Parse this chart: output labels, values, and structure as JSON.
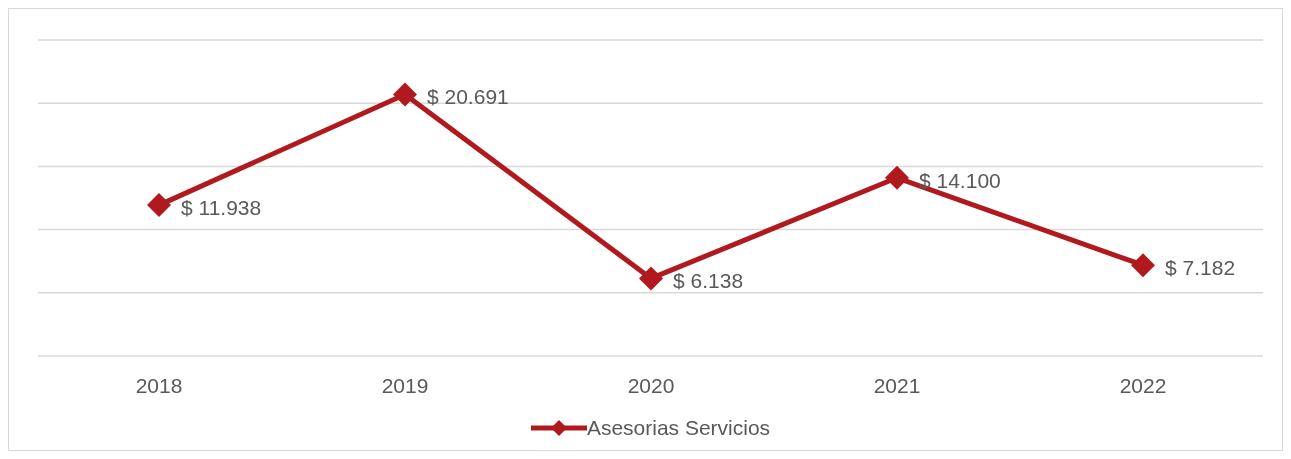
{
  "chart_data": {
    "type": "line",
    "categories": [
      "2018",
      "2019",
      "2020",
      "2021",
      "2022"
    ],
    "series": [
      {
        "name": "Asesorias Servicios",
        "color": "#b01a1e",
        "values": [
          11938,
          20691,
          6138,
          14100,
          7182
        ],
        "value_labels": [
          "$ 11.938",
          "$ 20.691",
          "$ 6.138",
          "$ 14.100",
          "$ 7.182"
        ]
      }
    ],
    "ylim": [
      0,
      25000
    ],
    "yticks": [
      {
        "value": 0,
        "label": null
      },
      {
        "value": 5000,
        "label": null
      },
      {
        "value": 10000,
        "label": null
      },
      {
        "value": 15000,
        "label": null
      },
      {
        "value": 20000,
        "label": null
      },
      {
        "value": 25000,
        "label": null
      }
    ],
    "tick_labels": "x",
    "grid": "y",
    "legend": "bottom",
    "marker": "diamond",
    "line_style": "solid"
  }
}
